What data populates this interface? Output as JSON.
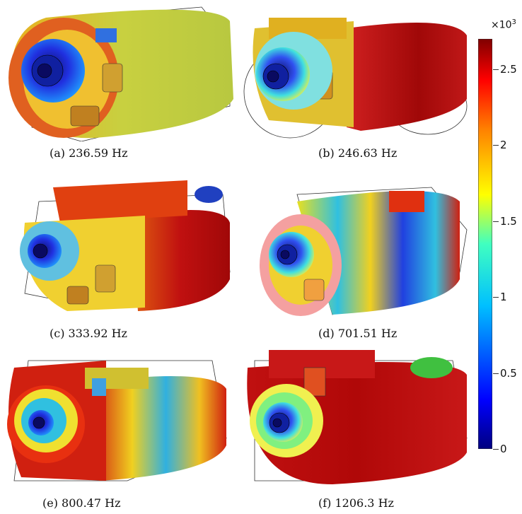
{
  "panels": [
    {
      "caption": "(a) 236.59 Hz"
    },
    {
      "caption": "(b) 246.63 Hz"
    },
    {
      "caption": "(c) 333.92 Hz"
    },
    {
      "caption": "(d) 701.51 Hz"
    },
    {
      "caption": "(e) 800.47 Hz"
    },
    {
      "caption": "(f) 1206.3 Hz"
    }
  ],
  "colorbar": {
    "multiplier": "×10",
    "exponent": "3",
    "ticks": [
      "2.5",
      "2",
      "1.5",
      "1",
      "0.5",
      "0"
    ],
    "range": [
      0,
      2.7
    ],
    "colors": [
      "#00007f",
      "#0000ff",
      "#00c0ff",
      "#40ffc0",
      "#ffff00",
      "#ff8000",
      "#ff0000",
      "#7f0000"
    ]
  }
}
